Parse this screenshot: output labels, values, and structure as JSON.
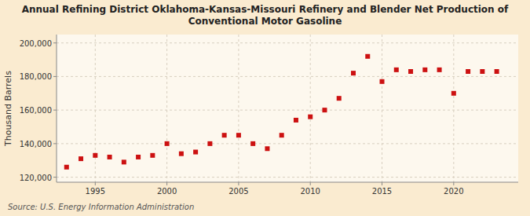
{
  "chart_data": {
    "type": "scatter",
    "title": "Annual Refining District Oklahoma-Kansas-Missouri Refinery and Blender Net Production of\nConventional Motor Gasoline",
    "ylabel": "Thousand Barrels",
    "source": "Source: U.S. Energy Information Administration",
    "color": "#cc1111",
    "marker": "square",
    "grid": true,
    "xlim": [
      1992.3,
      2024.5
    ],
    "ylim": [
      117000,
      205000
    ],
    "xticks": [
      1995,
      2000,
      2005,
      2010,
      2015,
      2020
    ],
    "yticks": [
      {
        "value": 120000,
        "label": "120,000"
      },
      {
        "value": 140000,
        "label": "140,000"
      },
      {
        "value": 160000,
        "label": "160,000"
      },
      {
        "value": 180000,
        "label": "180,000"
      },
      {
        "value": 200000,
        "label": "200,000"
      }
    ],
    "x": [
      1993,
      1994,
      1995,
      1996,
      1997,
      1998,
      1999,
      2000,
      2001,
      2002,
      2003,
      2004,
      2005,
      2006,
      2007,
      2008,
      2009,
      2010,
      2011,
      2012,
      2013,
      2014,
      2015,
      2016,
      2017,
      2018,
      2019,
      2020,
      2021,
      2022,
      2023
    ],
    "values": [
      126000,
      131000,
      133000,
      132000,
      129000,
      132000,
      133000,
      140000,
      134000,
      135000,
      140000,
      145000,
      145000,
      140000,
      137000,
      145000,
      154000,
      156000,
      160000,
      167000,
      182000,
      192000,
      177000,
      184000,
      183000,
      184000,
      184000,
      170000,
      183000,
      183000,
      183000
    ]
  }
}
